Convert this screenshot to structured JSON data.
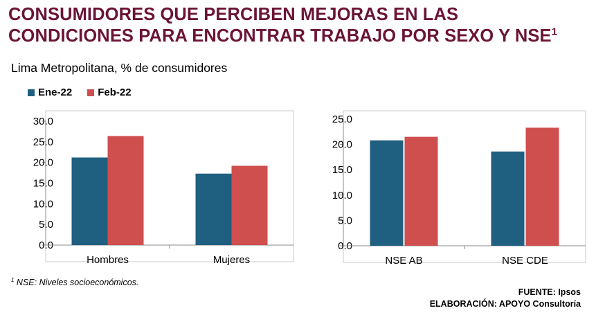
{
  "header": {
    "title_line1": "CONSUMIDORES QUE PERCIBEN MEJORAS EN LAS",
    "title_line2": "CONDICIONES PARA ENCONTRAR TRABAJO POR SEXO Y NSE",
    "title_sup": "1",
    "subtitle": "Lima Metropolitana, % de consumidores"
  },
  "legend": [
    {
      "label": "Ene-22",
      "color": "#1f5f80"
    },
    {
      "label": "Feb-22",
      "color": "#cf4f4f"
    }
  ],
  "chart_data": [
    {
      "type": "bar",
      "categories": [
        "Hombres",
        "Mujeres"
      ],
      "series": [
        {
          "name": "Ene-22",
          "values": [
            21.2,
            17.3
          ],
          "color": "#1f5f80"
        },
        {
          "name": "Feb-22",
          "values": [
            26.4,
            19.2
          ],
          "color": "#cf4f4f"
        }
      ],
      "ylim": [
        0,
        30
      ],
      "yticks": [
        "30.0",
        "25.0",
        "20.0",
        "15.0",
        "10.0",
        "5.0",
        "0.0"
      ],
      "grid": false,
      "legend_position": "top-left"
    },
    {
      "type": "bar",
      "categories": [
        "NSE AB",
        "NSE CDE"
      ],
      "series": [
        {
          "name": "Ene-22",
          "values": [
            20.8,
            18.6
          ],
          "color": "#1f5f80"
        },
        {
          "name": "Feb-22",
          "values": [
            21.5,
            23.3
          ],
          "color": "#cf4f4f"
        }
      ],
      "ylim": [
        0,
        25
      ],
      "yticks": [
        "25.0",
        "20.0",
        "15.0",
        "10.0",
        "5.0",
        "0.0"
      ],
      "grid": false
    }
  ],
  "footer": {
    "footnote_sup": "1",
    "footnote": " NSE: Niveles socioeconómicos.",
    "source": "FUENTE: Ipsos",
    "elaboration": "ELABORACIÓN: APOYO Consultoría"
  }
}
